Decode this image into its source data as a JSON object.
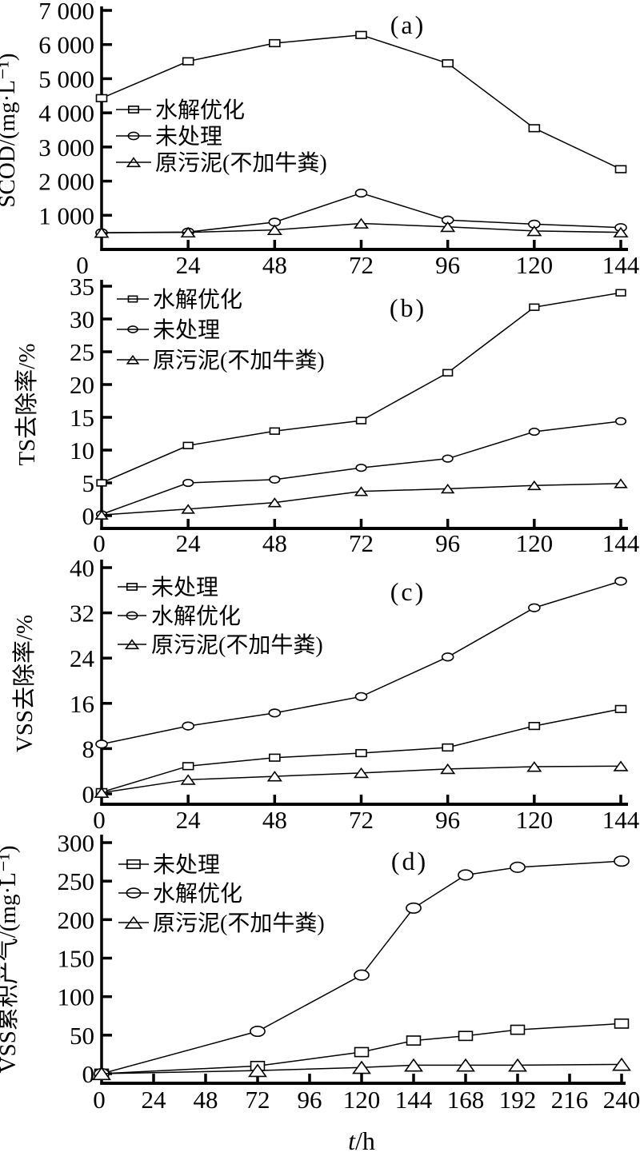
{
  "figure": {
    "background": "#ffffff",
    "ink_color": "#000000",
    "x_axis_title": {
      "variable": "t",
      "separator": "/",
      "unit": "h"
    }
  },
  "chart_data": [
    {
      "type": "line",
      "panel_label": "(a)",
      "ylabel": "SCOD/(mg·L⁻¹)",
      "xtick_values": [
        0,
        24,
        48,
        72,
        96,
        120,
        144
      ],
      "xtick_labels": [
        "0",
        "24",
        "48",
        "72",
        "96",
        "120",
        "144"
      ],
      "ytick_values": [
        1000,
        2000,
        3000,
        4000,
        5000,
        6000,
        7000
      ],
      "ytick_labels": [
        "1 000",
        "2 000",
        "3 000",
        "4 000",
        "5 000",
        "6 000",
        "7 000"
      ],
      "xlim": [
        0,
        144
      ],
      "ylim": [
        0,
        7000
      ],
      "grid": false,
      "legend_position": "upper-left-inside",
      "x": [
        0,
        24,
        48,
        72,
        96,
        120,
        144
      ],
      "series": [
        {
          "name": "水解优化",
          "marker": "square",
          "values": [
            4430,
            5510,
            6040,
            6280,
            5450,
            3550,
            2350
          ]
        },
        {
          "name": "未处理",
          "marker": "circle",
          "values": [
            490,
            510,
            800,
            1650,
            860,
            740,
            640
          ]
        },
        {
          "name": "原污泥(不加牛粪)",
          "marker": "triangle",
          "values": [
            490,
            500,
            570,
            760,
            660,
            540,
            500
          ]
        }
      ]
    },
    {
      "type": "line",
      "panel_label": "(b)",
      "ylabel": "TS去除率/%",
      "xtick_values": [
        0,
        24,
        48,
        72,
        96,
        120,
        144
      ],
      "xtick_labels": [
        "0",
        "24",
        "48",
        "72",
        "96",
        "120",
        "144"
      ],
      "ytick_values": [
        0,
        5,
        10,
        15,
        20,
        25,
        30,
        35
      ],
      "ytick_labels": [
        "0",
        "5",
        "10",
        "15",
        "20",
        "25",
        "30",
        "35"
      ],
      "xlim": [
        0,
        144
      ],
      "ylim": [
        0,
        35
      ],
      "grid": false,
      "legend_position": "upper-left-inside",
      "x": [
        0,
        24,
        48,
        72,
        96,
        120,
        144
      ],
      "series": [
        {
          "name": "水解优化",
          "marker": "square",
          "values": [
            5.0,
            10.7,
            12.9,
            14.5,
            21.8,
            31.8,
            34.0
          ]
        },
        {
          "name": "未处理",
          "marker": "circle",
          "values": [
            0.2,
            5.0,
            5.5,
            7.3,
            8.7,
            12.8,
            14.4
          ]
        },
        {
          "name": "原污泥(不加牛粪)",
          "marker": "triangle",
          "values": [
            0.1,
            1.0,
            2.0,
            3.7,
            4.1,
            4.6,
            4.9
          ]
        }
      ]
    },
    {
      "type": "line",
      "panel_label": "(c)",
      "ylabel": "VSS去除率/%",
      "xtick_values": [
        0,
        24,
        48,
        72,
        96,
        120,
        144
      ],
      "xtick_labels": [
        "0",
        "24",
        "48",
        "72",
        "96",
        "120",
        "144"
      ],
      "ytick_values": [
        0,
        8,
        16,
        24,
        32,
        40
      ],
      "ytick_labels": [
        "0",
        "8",
        "16",
        "24",
        "32",
        "40"
      ],
      "xlim": [
        0,
        144
      ],
      "ylim": [
        0,
        40
      ],
      "grid": false,
      "legend_position": "upper-left-inside",
      "x": [
        0,
        24,
        48,
        72,
        96,
        120,
        144
      ],
      "series": [
        {
          "name": "未处理",
          "marker": "square",
          "values": [
            0.3,
            4.9,
            6.4,
            7.2,
            8.2,
            12.0,
            15.0
          ]
        },
        {
          "name": "水解优化",
          "marker": "circle",
          "values": [
            8.8,
            12.0,
            14.3,
            17.2,
            24.2,
            32.9,
            37.6
          ]
        },
        {
          "name": "原污泥(不加牛粪)",
          "marker": "triangle",
          "values": [
            0.2,
            2.5,
            3.1,
            3.7,
            4.4,
            4.8,
            4.9
          ]
        }
      ]
    },
    {
      "type": "line",
      "panel_label": "(d)",
      "ylabel": "VSS累积产气/(mg·L⁻¹)",
      "xtick_values": [
        0,
        24,
        48,
        72,
        96,
        120,
        144,
        168,
        192,
        216,
        240
      ],
      "xtick_labels": [
        "0",
        "24",
        "48",
        "72",
        "96",
        "120",
        "144",
        "168",
        "192",
        "216",
        "240"
      ],
      "ytick_values": [
        0,
        50,
        100,
        150,
        200,
        250,
        300
      ],
      "ytick_labels": [
        "0",
        "50",
        "100",
        "150",
        "200",
        "250",
        "300"
      ],
      "xlim": [
        0,
        240
      ],
      "ylim": [
        0,
        300
      ],
      "grid": false,
      "legend_position": "upper-left-inside",
      "x": [
        0,
        72,
        120,
        144,
        168,
        192,
        240
      ],
      "series": [
        {
          "name": "未处理",
          "marker": "square",
          "values": [
            0,
            10,
            28,
            43,
            49,
            57,
            65
          ]
        },
        {
          "name": "水解优化",
          "marker": "circle",
          "values": [
            0,
            55,
            128,
            215,
            258,
            268,
            276
          ]
        },
        {
          "name": "原污泥(不加牛粪)",
          "marker": "triangle",
          "values": [
            0,
            4,
            8,
            11,
            11,
            11,
            12
          ]
        }
      ]
    }
  ]
}
